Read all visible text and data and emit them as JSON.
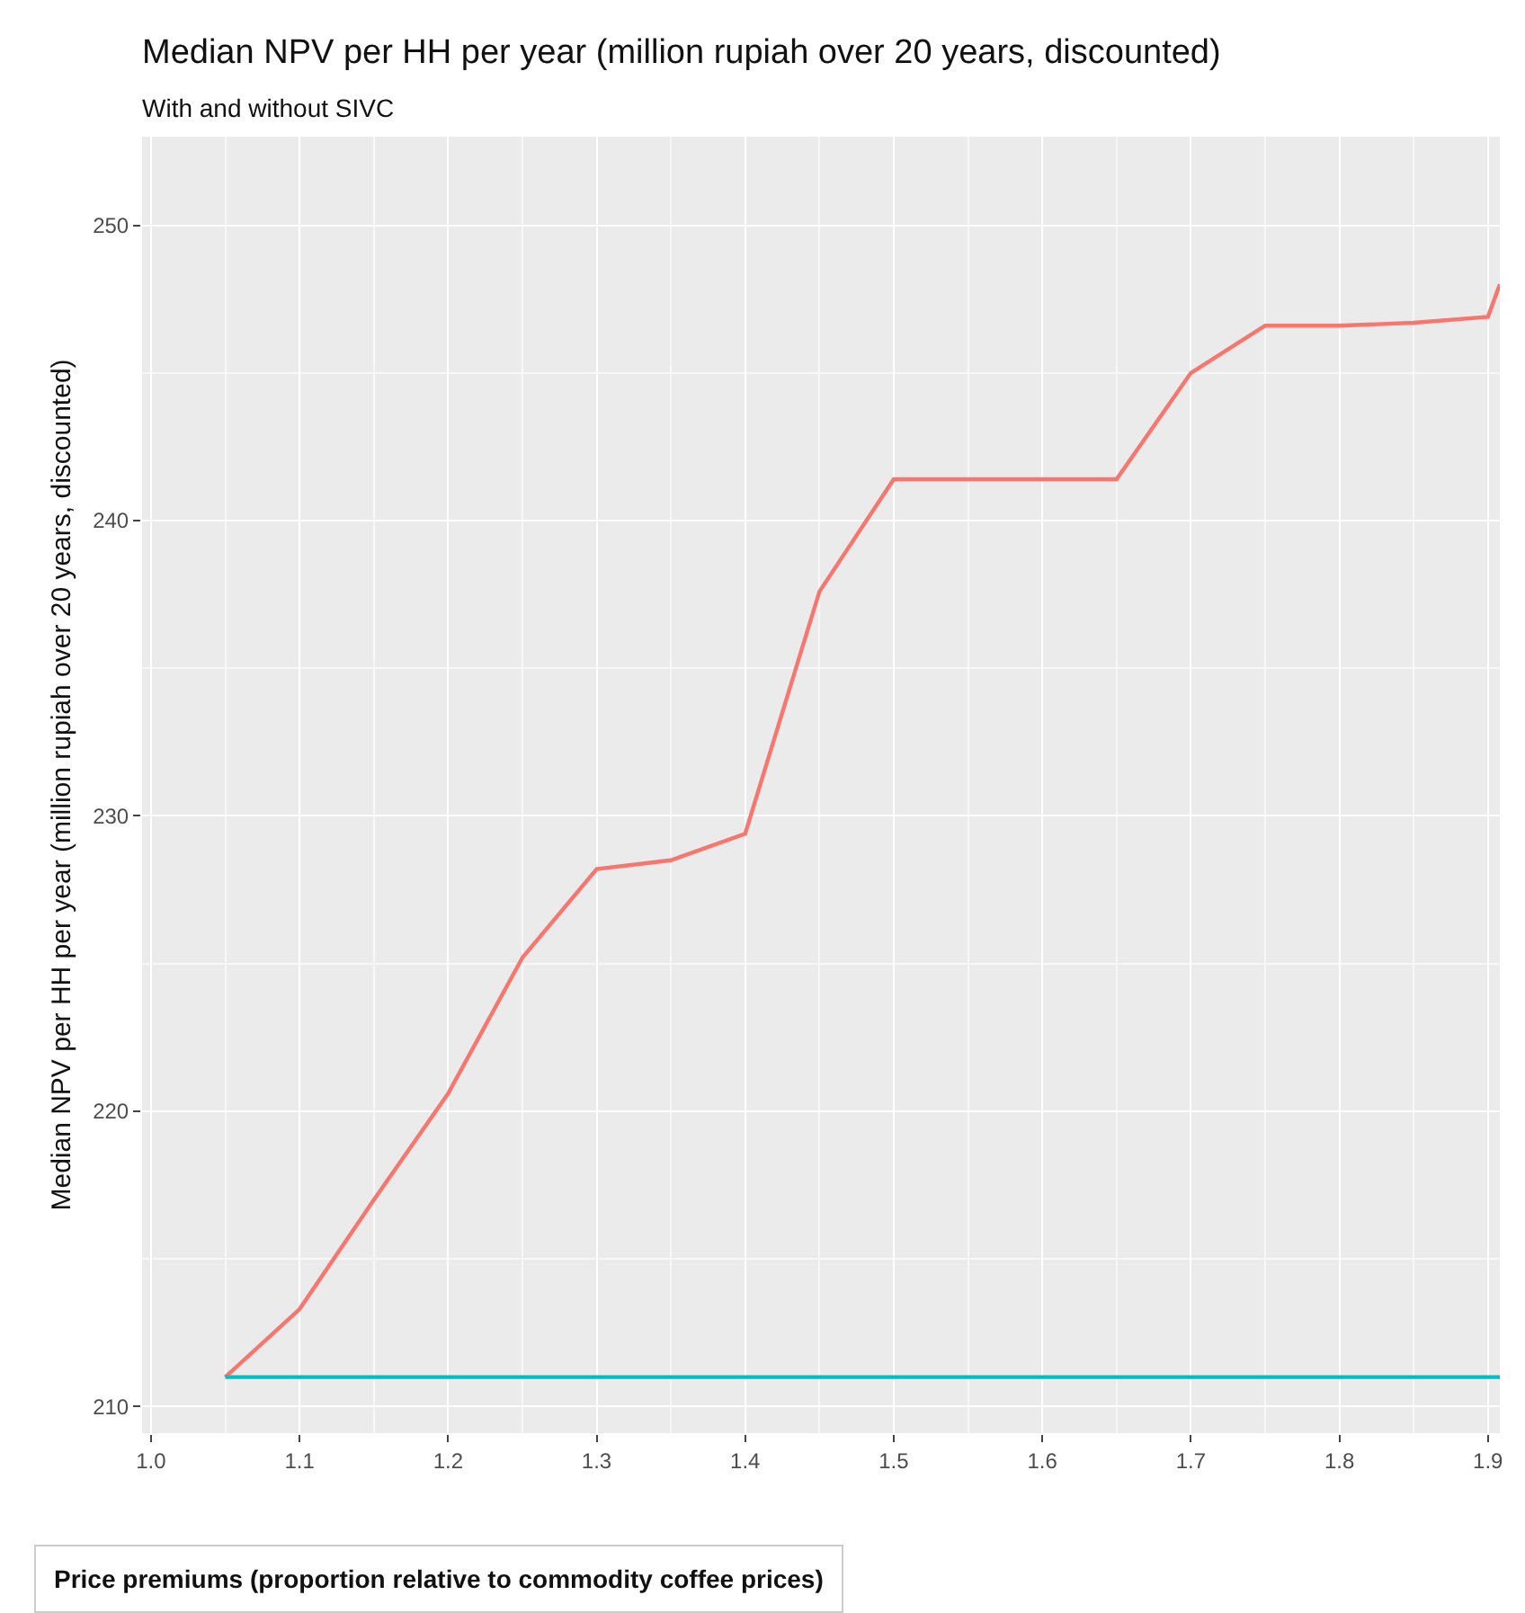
{
  "chart_data": {
    "type": "line",
    "title": "Median NPV per HH per year (million rupiah over 20 years, discounted)",
    "subtitle": "With and without SIVC",
    "ylabel": "Median NPV per HH per year (million rupiah over 20 years, discounted)",
    "xlabel": "Price premiums (proportion relative to commodity coffee prices)",
    "series": [
      {
        "color": "#f8766d",
        "x": [
          1.05,
          1.1,
          1.15,
          1.2,
          1.25,
          1.3,
          1.35,
          1.4,
          1.45,
          1.5,
          1.55,
          1.6,
          1.65,
          1.7,
          1.75,
          1.8,
          1.85,
          1.9,
          1.908
        ],
        "values": [
          211.0,
          213.3,
          217.0,
          220.6,
          225.2,
          228.2,
          228.5,
          229.4,
          237.6,
          241.4,
          241.4,
          241.4,
          241.4,
          245.0,
          246.6,
          246.6,
          246.7,
          246.9,
          248.0
        ]
      },
      {
        "color": "#00bfc4",
        "x": [
          1.05,
          1.908
        ],
        "values": [
          211.0,
          211.0
        ]
      }
    ],
    "xlim": [
      0.994,
      1.908
    ],
    "ylim": [
      209.1,
      253.0
    ],
    "xticks": [
      {
        "value": 1.0,
        "label": "1.0"
      },
      1.1,
      1.2,
      1.3,
      1.4,
      1.5,
      1.6,
      1.7,
      1.8,
      1.9
    ],
    "yticks": [
      210,
      220,
      230,
      240,
      250
    ],
    "grid": true,
    "line_style": "solid",
    "marker": "none"
  }
}
